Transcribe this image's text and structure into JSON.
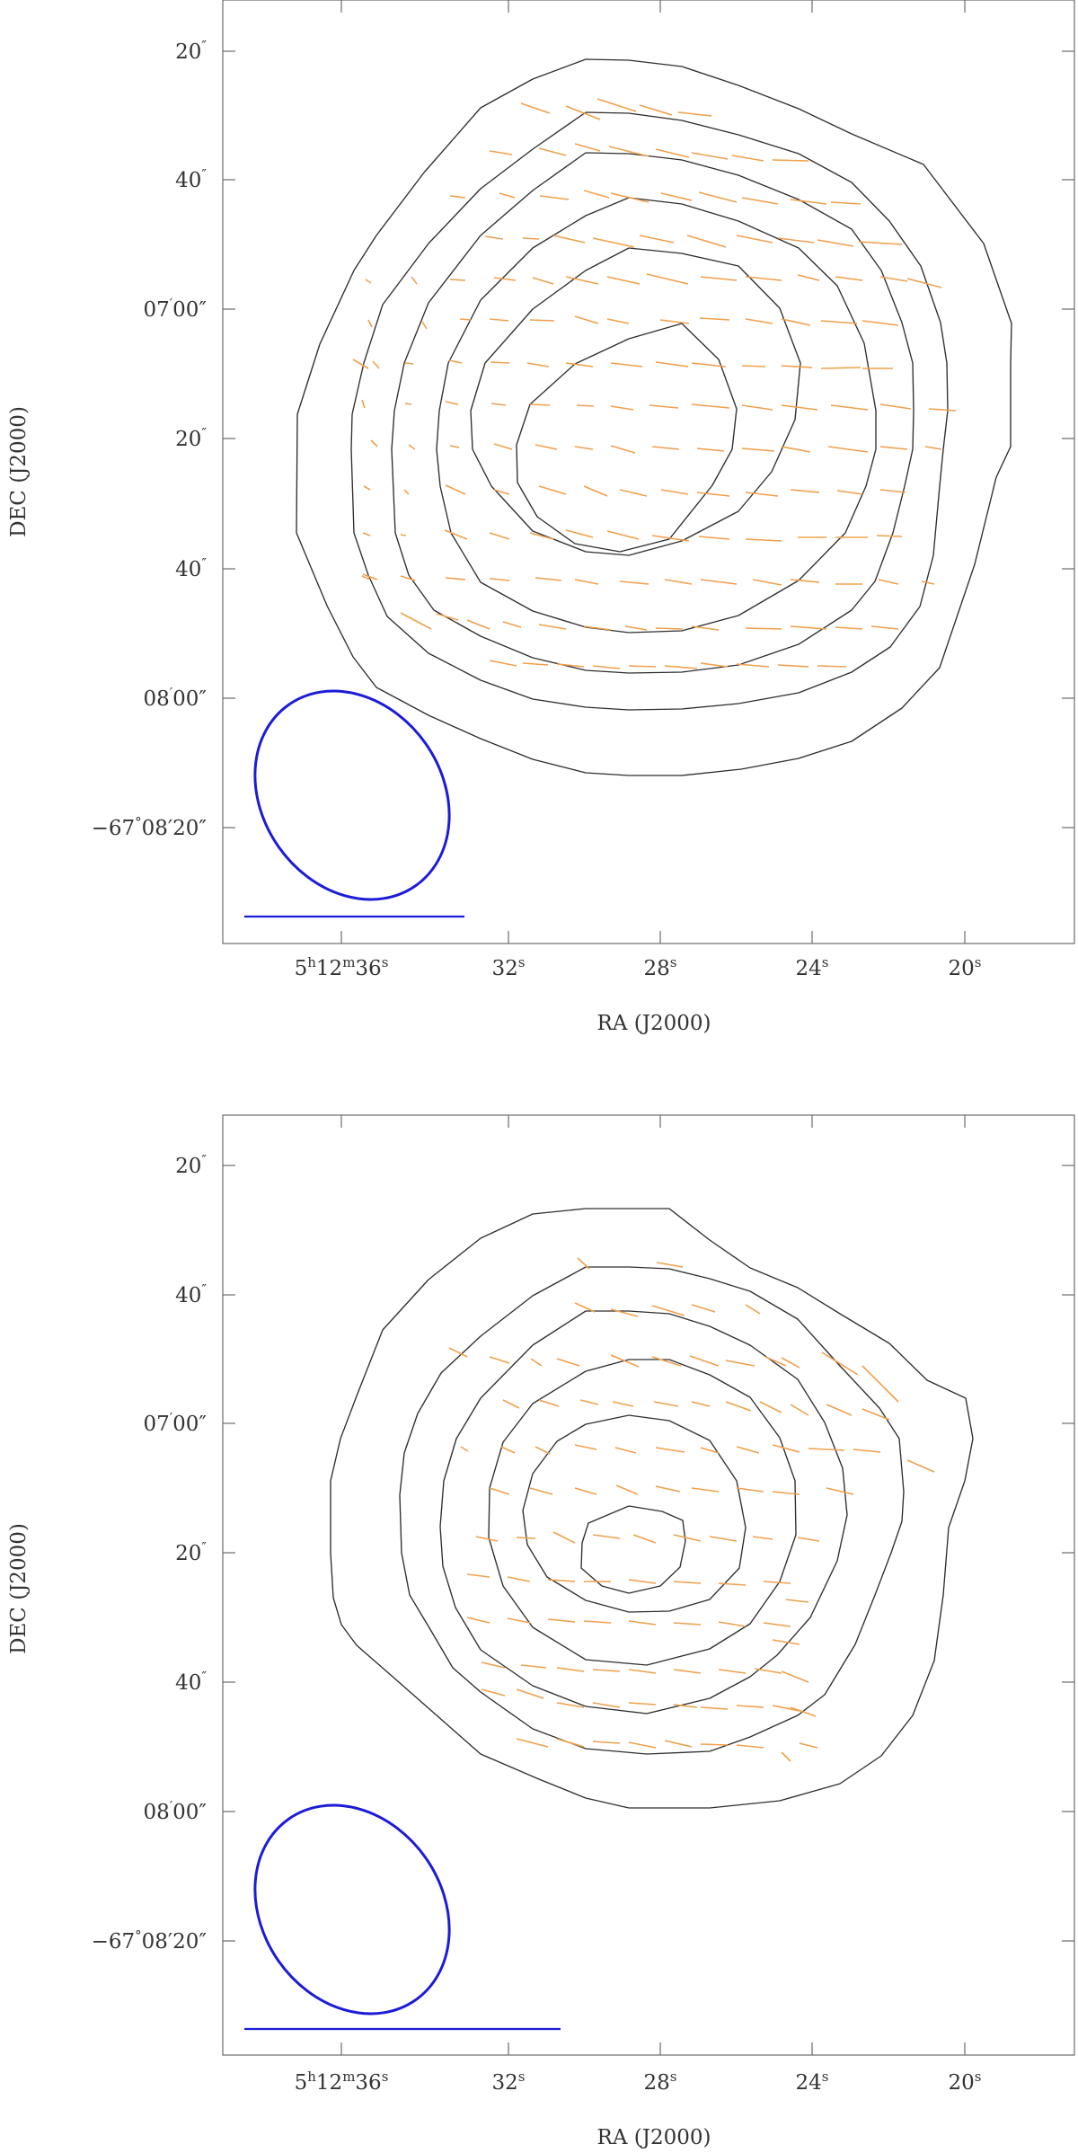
{
  "panels": [
    {
      "xlabel": "RA (J2000)",
      "ylabel": "DEC (J2000)",
      "dec_ticks": [
        {
          "main": "20",
          "sep": "″"
        },
        {
          "main": "40",
          "sep": "″"
        },
        {
          "main": "07",
          "sep": "′",
          "rest": "00″"
        },
        {
          "main": "20",
          "sep": "″"
        },
        {
          "main": "40",
          "sep": "″"
        },
        {
          "main": "08",
          "sep": "′",
          "rest": "00″"
        },
        {
          "main": "−67",
          "sep": "°",
          "rest": "08′20″"
        }
      ],
      "ra_ticks": [
        {
          "parts": [
            [
              "5",
              ""
            ],
            [
              "h",
              "sup"
            ],
            [
              "12",
              ""
            ],
            [
              "m",
              "sup"
            ],
            [
              "36",
              ""
            ],
            [
              "s",
              "sup"
            ]
          ]
        },
        {
          "parts": [
            [
              "32",
              ""
            ],
            [
              "s",
              "sup"
            ]
          ]
        },
        {
          "parts": [
            [
              "28",
              ""
            ],
            [
              "s",
              "sup"
            ]
          ]
        },
        {
          "parts": [
            [
              "24",
              ""
            ],
            [
              "s",
              "sup"
            ]
          ]
        },
        {
          "parts": [
            [
              "20",
              ""
            ],
            [
              "s",
              "sup"
            ]
          ]
        }
      ],
      "beam_color": "#1b1bd8",
      "contour_color": "#2e2e2e",
      "vector_color": "#f0a04c"
    },
    {
      "xlabel": "RA (J2000)",
      "ylabel": "DEC (J2000)",
      "dec_ticks": [
        {
          "main": "20",
          "sep": "″"
        },
        {
          "main": "40",
          "sep": "″"
        },
        {
          "main": "07",
          "sep": "′",
          "rest": "00″"
        },
        {
          "main": "20",
          "sep": "″"
        },
        {
          "main": "40",
          "sep": "″"
        },
        {
          "main": "08",
          "sep": "′",
          "rest": "00″"
        },
        {
          "main": "−67",
          "sep": "°",
          "rest": "08′20″"
        }
      ],
      "ra_ticks": [
        {
          "parts": [
            [
              "5",
              ""
            ],
            [
              "h",
              "sup"
            ],
            [
              "12",
              ""
            ],
            [
              "m",
              "sup"
            ],
            [
              "36",
              ""
            ],
            [
              "s",
              "sup"
            ]
          ]
        },
        {
          "parts": [
            [
              "32",
              ""
            ],
            [
              "s",
              "sup"
            ]
          ]
        },
        {
          "parts": [
            [
              "28",
              ""
            ],
            [
              "s",
              "sup"
            ]
          ]
        },
        {
          "parts": [
            [
              "24",
              ""
            ],
            [
              "s",
              "sup"
            ]
          ]
        },
        {
          "parts": [
            [
              "20",
              ""
            ],
            [
              "s",
              "sup"
            ]
          ]
        }
      ],
      "beam_color": "#1b1bd8",
      "contour_color": "#2e2e2e",
      "vector_color": "#f0a04c"
    }
  ]
}
